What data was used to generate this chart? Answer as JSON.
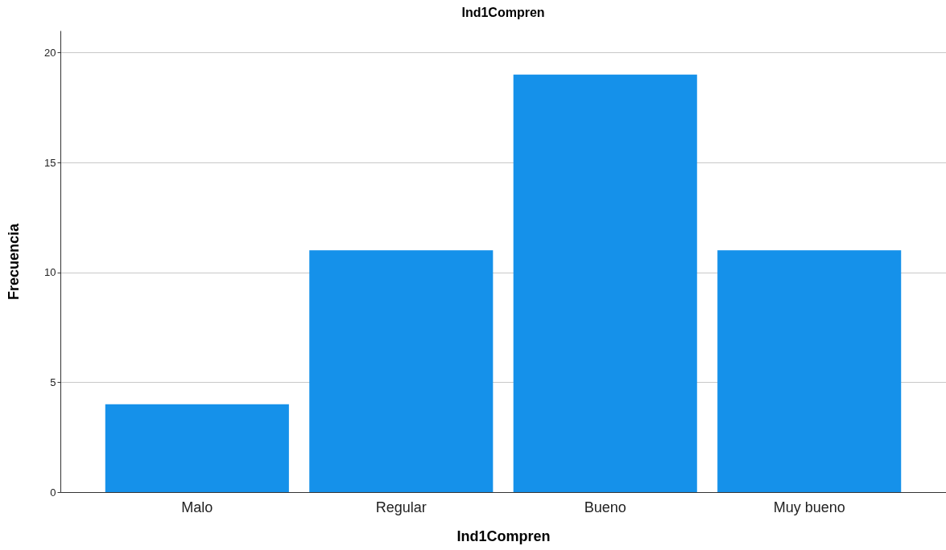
{
  "chart_data": {
    "type": "bar",
    "title": "Ind1Compren",
    "xlabel": "Ind1Compren",
    "ylabel": "Frecuencia",
    "categories": [
      "Malo",
      "Regular",
      "Bueno",
      "Muy bueno"
    ],
    "values": [
      4,
      11,
      19,
      11
    ],
    "color": "#1591ea",
    "ylim": [
      0,
      21
    ],
    "yticks": [
      0,
      5,
      10,
      15,
      20
    ],
    "grid": "y"
  }
}
